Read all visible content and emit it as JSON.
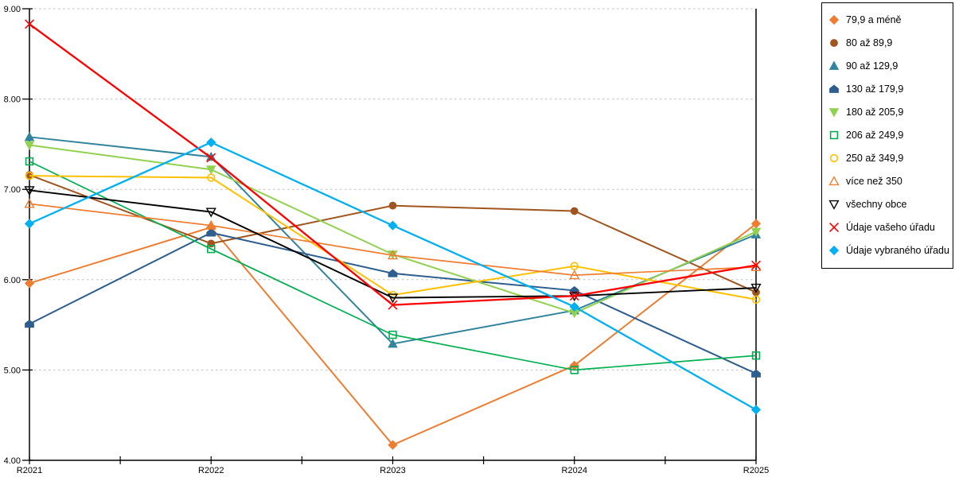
{
  "chart_data": {
    "type": "line",
    "title": "",
    "xlabel": "",
    "ylabel": "",
    "categories": [
      "R2021",
      "R2022",
      "R2023",
      "R2024",
      "R2025"
    ],
    "ylim": [
      4.0,
      9.0
    ],
    "y_tick_values": [
      9,
      8,
      7,
      6,
      5,
      4
    ],
    "y_tick_labels": [
      "9.00",
      "8.00",
      "7.00",
      "6.00",
      "5.00",
      "4.00"
    ],
    "grid": "horizontal-dashed",
    "gridline_color": "#bfbfbf",
    "axis_color": "#000000",
    "legend_position": "right",
    "series": [
      {
        "name": "79,9 a méně",
        "marker": "diamond",
        "filled": true,
        "color": "#ED7D31",
        "line_width": 2.0,
        "values": [
          5.96,
          6.58,
          4.17,
          5.05,
          6.62
        ]
      },
      {
        "name": "80 až 89,9",
        "marker": "circle",
        "filled": true,
        "color": "#A0551E",
        "line_width": 2.0,
        "values": [
          7.16,
          6.4,
          6.82,
          6.76,
          5.86
        ]
      },
      {
        "name": "90 až 129,9",
        "marker": "triangle-up",
        "filled": true,
        "color": "#31849B",
        "line_width": 2.0,
        "values": [
          7.58,
          7.36,
          5.29,
          5.66,
          6.5
        ]
      },
      {
        "name": "130 až 179,9",
        "marker": "pentagon",
        "filled": true,
        "color": "#2E5E8E",
        "line_width": 2.0,
        "values": [
          5.51,
          6.52,
          6.07,
          5.88,
          4.96
        ]
      },
      {
        "name": "180 až 205,9",
        "marker": "triangle-down",
        "filled": true,
        "color": "#92D050",
        "line_width": 2.0,
        "values": [
          7.49,
          7.22,
          6.28,
          5.63,
          6.53
        ]
      },
      {
        "name": "206 až 249,9",
        "marker": "square",
        "filled": false,
        "color": "#00B050",
        "line_width": 1.7,
        "values": [
          7.31,
          6.34,
          5.39,
          5.0,
          5.16
        ]
      },
      {
        "name": "250 až 349,9",
        "marker": "circle",
        "filled": false,
        "color": "#FFC000",
        "line_width": 2.0,
        "values": [
          7.15,
          7.13,
          5.83,
          6.15,
          5.78
        ]
      },
      {
        "name": "více než 350",
        "marker": "triangle-up",
        "filled": false,
        "color": "#ED7D31",
        "line_width": 1.7,
        "values": [
          6.84,
          6.6,
          6.27,
          6.05,
          6.14
        ]
      },
      {
        "name": "všechny obce",
        "marker": "triangle-down",
        "filled": false,
        "color": "#000000",
        "line_width": 1.9,
        "values": [
          6.99,
          6.75,
          5.8,
          5.82,
          5.91
        ]
      },
      {
        "name": "Údaje vašeho úřadu",
        "marker": "x-cross",
        "filled": false,
        "color": "#FF0000",
        "line_width": 2.3,
        "values": [
          8.83,
          7.35,
          5.72,
          5.82,
          6.16
        ]
      },
      {
        "name": "Údaje vybraného úřadu",
        "marker": "diamond",
        "filled": true,
        "color": "#00B0F0",
        "line_width": 2.3,
        "values": [
          6.62,
          7.52,
          6.6,
          5.7,
          4.56
        ]
      }
    ]
  }
}
